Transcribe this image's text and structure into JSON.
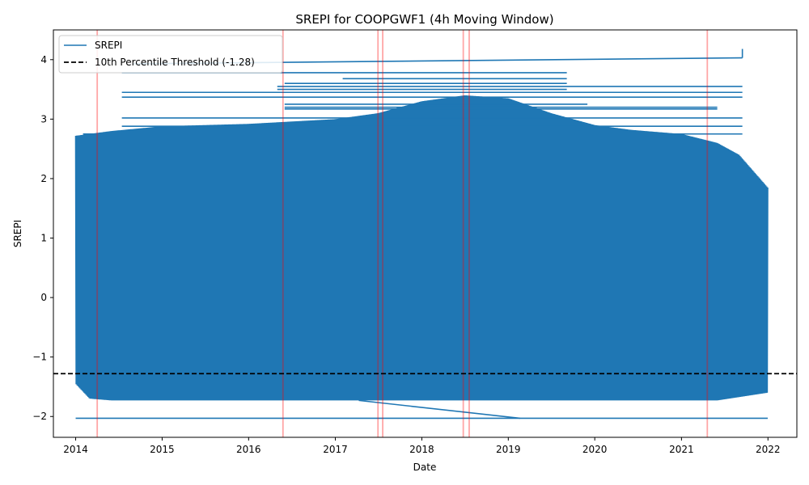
{
  "chart_data": {
    "type": "line",
    "title": "SREPI for COOPGWF1 (4h Moving Window)",
    "xlabel": "Date",
    "ylabel": "SREPI",
    "xlim": [
      "2013-09-29",
      "2022-05-03"
    ],
    "ylim": [
      -2.35,
      4.5
    ],
    "x_ticks": [
      "2014",
      "2015",
      "2016",
      "2017",
      "2018",
      "2019",
      "2020",
      "2021",
      "2022"
    ],
    "y_ticks": [
      -2,
      -1,
      0,
      1,
      2,
      3,
      4
    ],
    "y_tick_labels": [
      "−2",
      "−1",
      "0",
      "1",
      "2",
      "3",
      "4"
    ],
    "grid": false,
    "legend_position": "upper-left",
    "series": [
      {
        "name": "SREPI",
        "color": "#1f77b4",
        "start": "2014-01-01",
        "end": "2021-12-31",
        "dense_band": {
          "low": -1.73,
          "high": 2.95
        },
        "upper_envelope": [
          {
            "x": "2014-01-01",
            "y": 2.72
          },
          {
            "x": "2014-06-01",
            "y": 2.8
          },
          {
            "x": "2015-01-01",
            "y": 2.88
          },
          {
            "x": "2016-01-01",
            "y": 2.92
          },
          {
            "x": "2017-01-01",
            "y": 3.0
          },
          {
            "x": "2017-07-01",
            "y": 3.1
          },
          {
            "x": "2018-01-01",
            "y": 3.3
          },
          {
            "x": "2018-07-01",
            "y": 3.4
          },
          {
            "x": "2019-01-01",
            "y": 3.35
          },
          {
            "x": "2019-07-01",
            "y": 3.1
          },
          {
            "x": "2020-01-01",
            "y": 2.9
          },
          {
            "x": "2020-06-01",
            "y": 2.82
          },
          {
            "x": "2021-01-01",
            "y": 2.75
          },
          {
            "x": "2021-06-01",
            "y": 2.6
          },
          {
            "x": "2021-09-01",
            "y": 2.4
          },
          {
            "x": "2021-12-31",
            "y": 1.85
          }
        ],
        "lower_envelope": [
          {
            "x": "2014-01-01",
            "y": -1.45
          },
          {
            "x": "2014-03-01",
            "y": -1.7
          },
          {
            "x": "2014-06-01",
            "y": -1.73
          },
          {
            "x": "2021-06-01",
            "y": -1.73
          },
          {
            "x": "2021-12-31",
            "y": -1.6
          }
        ],
        "outlier_segments": [
          {
            "x0": "2014-01-01",
            "x1": "2021-12-31",
            "y0": -2.03,
            "y1": -2.03
          },
          {
            "x0": "2017-04-10",
            "x1": "2019-02-20",
            "y0": -1.73,
            "y1": -2.03
          },
          {
            "x0": "2014-09-01",
            "x1": "2021-09-15",
            "y0": 3.93,
            "y1": 4.03
          },
          {
            "x0": "2021-09-15",
            "x1": "2021-09-15",
            "y0": 4.03,
            "y1": 4.18
          },
          {
            "x0": "2014-07-15",
            "x1": "2019-09-05",
            "y0": 3.78,
            "y1": 3.78
          },
          {
            "x0": "2014-07-15",
            "x1": "2021-09-15",
            "y0": 3.45,
            "y1": 3.45
          },
          {
            "x0": "2014-07-15",
            "x1": "2021-09-15",
            "y0": 3.37,
            "y1": 3.37
          },
          {
            "x0": "2016-05-01",
            "x1": "2021-09-15",
            "y0": 3.55,
            "y1": 3.55
          },
          {
            "x0": "2016-05-01",
            "x1": "2019-09-05",
            "y0": 3.5,
            "y1": 3.5
          },
          {
            "x0": "2017-02-01",
            "x1": "2019-09-05",
            "y0": 3.68,
            "y1": 3.68
          },
          {
            "x0": "2016-06-01",
            "x1": "2019-09-05",
            "y0": 3.6,
            "y1": 3.6
          },
          {
            "x0": "2016-06-01",
            "x1": "2019-12-01",
            "y0": 3.25,
            "y1": 3.25
          },
          {
            "x0": "2014-07-15",
            "x1": "2021-09-15",
            "y0": 3.02,
            "y1": 3.02
          },
          {
            "x0": "2016-06-01",
            "x1": "2021-06-01",
            "y0": 3.2,
            "y1": 3.2
          },
          {
            "x0": "2016-06-01",
            "x1": "2021-06-01",
            "y0": 3.17,
            "y1": 3.17
          },
          {
            "x0": "2014-07-15",
            "x1": "2021-09-15",
            "y0": 2.88,
            "y1": 2.88
          },
          {
            "x0": "2014-02-01",
            "x1": "2021-09-15",
            "y0": 2.75,
            "y1": 2.75
          }
        ]
      }
    ],
    "threshold": {
      "name": "10th Percentile Threshold (-1.28)",
      "y": -1.28,
      "color": "#000000",
      "style": "dashed"
    },
    "event_markers": {
      "color": "#ff0000",
      "opacity": 0.35,
      "dates": [
        "2014-04-02",
        "2016-05-25",
        "2017-06-30",
        "2017-07-20",
        "2018-06-25",
        "2018-07-20",
        "2021-04-20"
      ]
    }
  }
}
